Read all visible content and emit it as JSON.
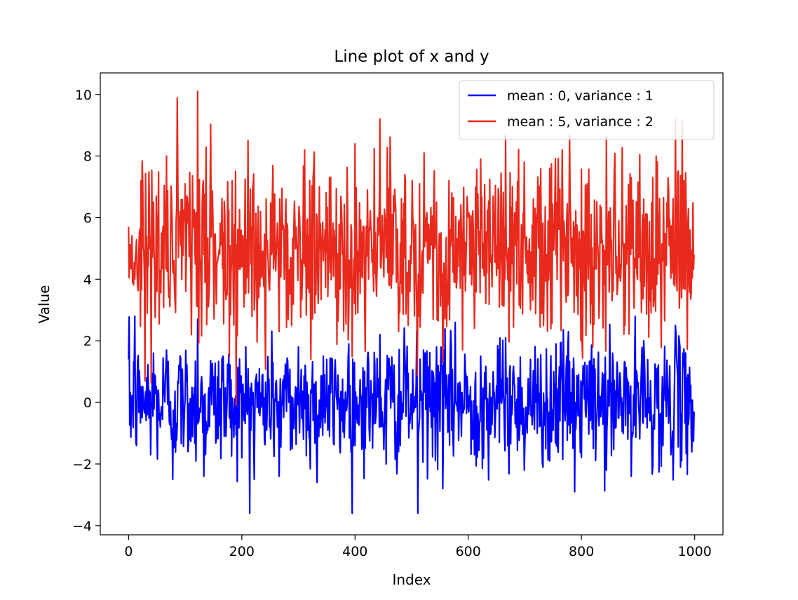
{
  "chart_data": {
    "type": "line",
    "title": "Line plot of x and y",
    "xlabel": "Index",
    "ylabel": "Value",
    "xlim": [
      -50,
      1050
    ],
    "ylim": [
      -4.3,
      10.7
    ],
    "x_ticks": [
      0,
      200,
      400,
      600,
      800,
      1000
    ],
    "y_ticks": [
      -4,
      -2,
      0,
      2,
      4,
      6,
      8,
      10
    ],
    "y_tick_labels": [
      "−4",
      "−2",
      "0",
      "2",
      "4",
      "6",
      "8",
      "10"
    ],
    "grid": false,
    "legend_position": "upper right",
    "series": [
      {
        "name": "mean : 0, variance : 1",
        "color": "#0000ff",
        "mean": 0,
        "std": 1,
        "n_points": 1000,
        "sampled_values": [
          1.4,
          2.8,
          0.5,
          -0.4,
          1.6,
          -0.8,
          1.7,
          -2.5,
          1.2,
          0.1,
          -0.3,
          2.7,
          -2.4,
          0.6,
          -1.2,
          1.5,
          -0.5,
          0.2,
          -1.8,
          1.1,
          -2.5,
          0.3,
          -0.9,
          1.3,
          -2.4,
          0.8,
          -1.5,
          1.8,
          -0.2,
          0.4,
          -2.6,
          1.5,
          -1.1,
          0.7,
          -0.6,
          1.9,
          -1.4,
          0.2,
          1.4,
          -0.7,
          2.2,
          -2.0,
          0.5,
          -1.6,
          1.6,
          0.1,
          -3.6,
          1.2,
          -0.3,
          1.8,
          -2.8,
          0.9,
          2.6,
          -1.1,
          0.4,
          -1.7,
          1.5,
          -0.9,
          1.0,
          -1.3,
          2.1,
          -0.4,
          0.8,
          -2.2,
          1.4,
          -1.0,
          0.3,
          -1.9,
          1.9,
          0.6,
          2.3,
          -2.9,
          0.7,
          1.2,
          -1.5,
          0.2,
          -2.2,
          1.6,
          -0.5,
          1.3,
          -2.4,
          0.5,
          2.0,
          -0.6,
          1.1,
          -1.4,
          0.4,
          2.5,
          -1.9,
          0.9,
          -0.3
        ]
      },
      {
        "name": "mean : 5, variance : 2",
        "color": "#e8291c",
        "mean": 5,
        "std": 1.4142,
        "n_points": 1000,
        "sampled_values": [
          5.7,
          4.0,
          7.2,
          2.9,
          6.5,
          3.6,
          8.0,
          4.3,
          5.9,
          7.1,
          2.2,
          10.1,
          4.8,
          6.8,
          3.2,
          5.5,
          1.5,
          7.5,
          4.4,
          8.5,
          3.0,
          6.2,
          5.0,
          7.7,
          2.3,
          6.6,
          3.8,
          5.4,
          8.2,
          1.4,
          6.0,
          4.6,
          7.3,
          3.4,
          5.8,
          2.9,
          8.4,
          4.1,
          6.9,
          3.6,
          9.2,
          4.7,
          6.1,
          2.3,
          7.4,
          5.2,
          3.3,
          8.1,
          4.9,
          6.5,
          1.3,
          7.2,
          3.9,
          5.6,
          6.3,
          2.4,
          7.9,
          4.2,
          6.7,
          3.1,
          8.7,
          4.5,
          5.3,
          7.8,
          3.0,
          6.0,
          2.5,
          7.6,
          4.8,
          8.2,
          3.6,
          5.7,
          2.0,
          7.1,
          4.4,
          6.4,
          8.6,
          3.8,
          5.9,
          2.5,
          7.3,
          4.0,
          6.6,
          3.3,
          8.0,
          4.6,
          5.1,
          9.2,
          3.4,
          5.8,
          4.8
        ]
      }
    ]
  }
}
